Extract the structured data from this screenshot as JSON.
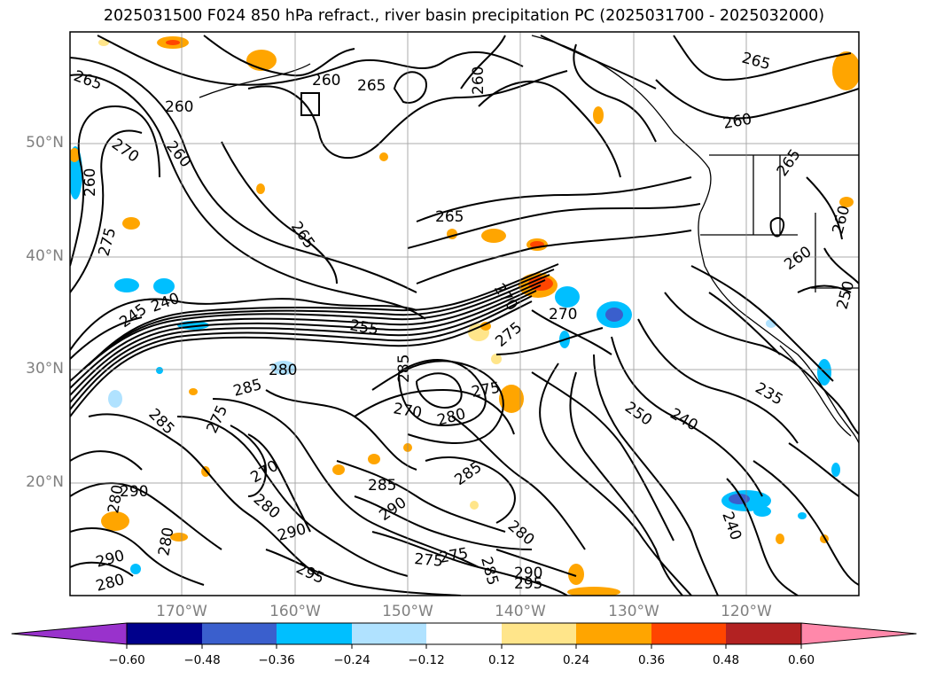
{
  "title": "2025031500 F024 850 hPa refract., river basin precipitation PC (2025031700 - 2025032000)",
  "lat_labels": [
    "50°N",
    "40°N",
    "30°N",
    "20°N"
  ],
  "lon_labels": [
    "170°W",
    "160°W",
    "150°W",
    "140°W",
    "130°W",
    "120°W"
  ],
  "colorbar": {
    "ticks": [
      "−0.60",
      "−0.48",
      "−0.36",
      "−0.24",
      "−0.12",
      "0.12",
      "0.24",
      "0.36",
      "0.48",
      "0.60"
    ],
    "colors": [
      "#9932cc",
      "#00008b",
      "#3a5fcd",
      "#00bfff",
      "#b0e2ff",
      "#ffffff",
      "#ffe58a",
      "#ffa500",
      "#ff4500",
      "#b22222",
      "#ff88aa"
    ]
  },
  "contour_labels": {
    "l265a": "265",
    "l260a": "260",
    "l265b": "265",
    "l260b": "260",
    "l265c": "265",
    "l260c": "260",
    "l260d": "260",
    "l270a": "270",
    "l260e": "260",
    "l260f": "260",
    "l265d": "265",
    "l275a": "275",
    "l265e": "265",
    "l265f": "265",
    "l260g": "260",
    "l260h": "260",
    "l245": "245",
    "l240a": "240",
    "l255": "255",
    "l270b": "270",
    "l270c": "270",
    "l275b": "275",
    "l280a": "280",
    "l285a": "285",
    "l285b": "285",
    "l270d": "270",
    "l275c": "275",
    "l280b": "280",
    "l250a": "250",
    "l240b": "240",
    "l235": "235",
    "l250b": "250",
    "l285c": "285",
    "l275d": "275",
    "l270e": "270",
    "l280c": "280",
    "l290a": "290",
    "l285d": "285",
    "l285e": "285",
    "l290b": "290",
    "l290c": "290",
    "l280d": "280",
    "l280e": "280",
    "l295a": "295",
    "l275e": "275",
    "l285f": "285",
    "l290d": "290",
    "l295b": "295",
    "l240c": "240",
    "l280f": "280",
    "l290e": "290",
    "l275f": "275",
    "l280g": "280"
  }
}
